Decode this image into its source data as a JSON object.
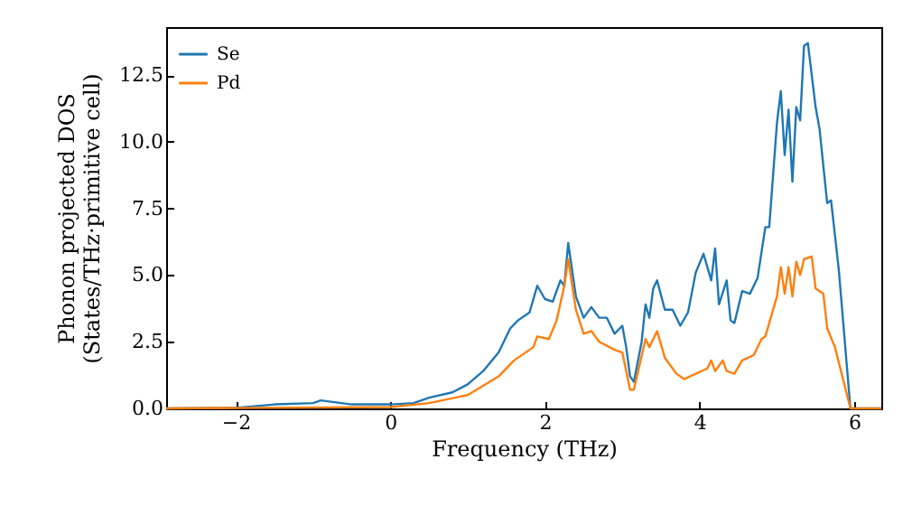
{
  "chart_data": {
    "type": "line",
    "xlabel": "Frequency (THz)",
    "ylabel": "Phonon projected DOS\n(States/THz·primitive cell)",
    "xlim": [
      -2.9,
      6.35
    ],
    "ylim": [
      0,
      14.3
    ],
    "xticks": [
      {
        "value": -2,
        "label": "−2"
      },
      0,
      2,
      4,
      6
    ],
    "yticks": [
      {
        "value": 0,
        "label": "0.0"
      },
      {
        "value": 2.5,
        "label": "2.5"
      },
      {
        "value": 5,
        "label": "5.0"
      },
      {
        "value": 7.5,
        "label": "7.5"
      },
      {
        "value": 10,
        "label": "10.0"
      },
      {
        "value": 12.5,
        "label": "12.5"
      }
    ],
    "legend": "top left",
    "grid": false,
    "series": [
      {
        "name": "Se",
        "color": "#1f77b4",
        "x": [
          -2.9,
          -2,
          -1.5,
          -1,
          -0.9,
          -0.5,
          0,
          0.3,
          0.5,
          0.8,
          1.0,
          1.2,
          1.4,
          1.55,
          1.65,
          1.8,
          1.9,
          2.0,
          2.1,
          2.2,
          2.25,
          2.3,
          2.4,
          2.5,
          2.6,
          2.7,
          2.8,
          2.9,
          3.0,
          3.05,
          3.1,
          3.15,
          3.25,
          3.3,
          3.35,
          3.4,
          3.45,
          3.55,
          3.65,
          3.75,
          3.85,
          3.95,
          4.05,
          4.15,
          4.2,
          4.25,
          4.35,
          4.4,
          4.45,
          4.55,
          4.65,
          4.75,
          4.85,
          4.9,
          5.0,
          5.05,
          5.1,
          5.15,
          5.2,
          5.25,
          5.3,
          5.35,
          5.4,
          5.5,
          5.55,
          5.65,
          5.7,
          5.8,
          5.95,
          6.35
        ],
        "values": [
          0,
          0.02,
          0.15,
          0.2,
          0.3,
          0.15,
          0.15,
          0.2,
          0.4,
          0.6,
          0.9,
          1.4,
          2.1,
          3.0,
          3.3,
          3.6,
          4.6,
          4.1,
          4.0,
          4.8,
          4.6,
          6.2,
          4.2,
          3.4,
          3.8,
          3.4,
          3.4,
          2.8,
          3.1,
          2.3,
          1.2,
          1.0,
          2.5,
          3.9,
          3.4,
          4.5,
          4.8,
          3.7,
          3.7,
          3.1,
          3.6,
          5.1,
          5.8,
          4.8,
          6.0,
          3.9,
          4.8,
          3.3,
          3.2,
          4.4,
          4.3,
          4.9,
          6.8,
          6.8,
          10.7,
          11.9,
          9.5,
          11.2,
          8.5,
          11.3,
          10.8,
          13.6,
          13.7,
          11.3,
          10.5,
          7.7,
          7.8,
          5.2,
          0,
          0
        ]
      },
      {
        "name": "Pd",
        "color": "#ff7f0e",
        "x": [
          -2.9,
          0,
          0.5,
          1.0,
          1.4,
          1.6,
          1.85,
          1.9,
          2.05,
          2.15,
          2.25,
          2.3,
          2.4,
          2.5,
          2.6,
          2.7,
          2.9,
          3.0,
          3.1,
          3.15,
          3.3,
          3.35,
          3.45,
          3.55,
          3.7,
          3.8,
          3.95,
          4.1,
          4.15,
          4.2,
          4.3,
          4.35,
          4.45,
          4.55,
          4.7,
          4.8,
          4.85,
          5.0,
          5.05,
          5.1,
          5.15,
          5.2,
          5.25,
          5.3,
          5.35,
          5.45,
          5.5,
          5.6,
          5.65,
          5.75,
          5.95,
          6.35
        ],
        "values": [
          0,
          0.05,
          0.2,
          0.5,
          1.2,
          1.8,
          2.3,
          2.7,
          2.6,
          3.3,
          4.6,
          5.6,
          3.7,
          2.8,
          2.9,
          2.5,
          2.2,
          2.1,
          0.7,
          0.7,
          2.6,
          2.3,
          2.9,
          1.9,
          1.3,
          1.1,
          1.3,
          1.5,
          1.8,
          1.4,
          1.8,
          1.4,
          1.3,
          1.8,
          2.0,
          2.6,
          2.7,
          4.2,
          5.3,
          4.3,
          5.3,
          4.2,
          5.5,
          5.0,
          5.6,
          5.7,
          4.5,
          4.3,
          3.0,
          2.3,
          0,
          0
        ]
      }
    ]
  }
}
